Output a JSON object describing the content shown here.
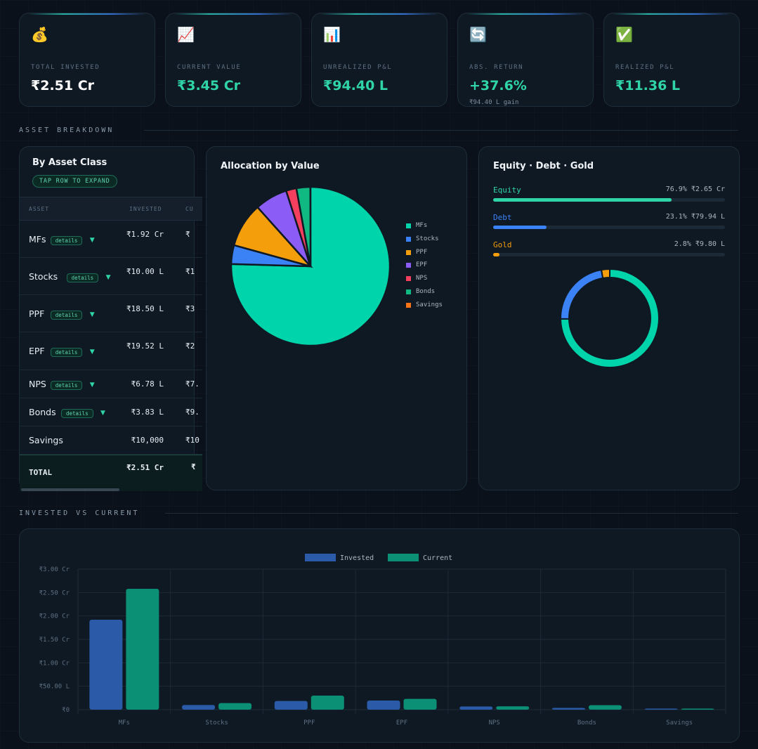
{
  "stats": [
    {
      "emoji": "💰",
      "label": "TOTAL INVESTED",
      "value": "₹2.51 Cr",
      "sub": ""
    },
    {
      "emoji": "📈",
      "label": "CURRENT VALUE",
      "value": "₹3.45 Cr",
      "sub": ""
    },
    {
      "emoji": "📊",
      "label": "UNREALIZED P&L",
      "value": "₹94.40 L",
      "sub": ""
    },
    {
      "emoji": "🔄",
      "label": "ABS. RETURN",
      "value": "+37.6%",
      "sub": "₹94.40 L gain"
    },
    {
      "emoji": "✅",
      "label": "REALIZED P&L",
      "value": "₹11.36 L",
      "sub": ""
    }
  ],
  "sections": {
    "asset_breakdown": "ASSET BREAKDOWN",
    "invested_vs_current": "INVESTED VS CURRENT"
  },
  "asset_table": {
    "title": "By Asset Class",
    "badge": "TAP ROW TO EXPAND",
    "headers": [
      "ASSET",
      "INVESTED",
      "CU"
    ],
    "details_label": "details",
    "caret": "▼",
    "rows": [
      {
        "name": "MFs",
        "invested": "₹1.92 Cr",
        "current": "₹",
        "details": true
      },
      {
        "name": "Stocks",
        "invested": "₹10.00 L",
        "current": "₹1",
        "details": true
      },
      {
        "name": "PPF",
        "invested": "₹18.50 L",
        "current": "₹3",
        "details": true
      },
      {
        "name": "EPF",
        "invested": "₹19.52 L",
        "current": "₹2",
        "details": true
      },
      {
        "name": "NPS",
        "invested": "₹6.78 L",
        "current": "₹7.",
        "details": true
      },
      {
        "name": "Bonds",
        "invested": "₹3.83 L",
        "current": "₹9.",
        "details": true
      },
      {
        "name": "Savings",
        "invested": "₹10,000",
        "current": "₹10",
        "details": false
      }
    ],
    "total": {
      "name": "TOTAL",
      "invested": "₹2.51 Cr",
      "current": "₹"
    }
  },
  "allocation": {
    "title": "Allocation by Value",
    "legend": [
      {
        "name": "MFs",
        "color": "#00d4aa"
      },
      {
        "name": "Stocks",
        "color": "#3b82f6"
      },
      {
        "name": "PPF",
        "color": "#f59e0b"
      },
      {
        "name": "EPF",
        "color": "#8b5cf6"
      },
      {
        "name": "NPS",
        "color": "#f43f5e"
      },
      {
        "name": "Bonds",
        "color": "#10b981"
      },
      {
        "name": "Savings",
        "color": "#f97316"
      }
    ]
  },
  "edg": {
    "title": "Equity · Debt · Gold",
    "items": [
      {
        "name": "Equity",
        "value": "76.9% ₹2.65 Cr",
        "percent": 76.9,
        "color": "#2fd5a6"
      },
      {
        "name": "Debt",
        "value": "23.1% ₹79.94 L",
        "percent": 23.1,
        "color": "#3b82f6"
      },
      {
        "name": "Gold",
        "value": "2.8% ₹9.80 L",
        "percent": 2.8,
        "color": "#f59e0b"
      }
    ]
  },
  "chart_data": [
    {
      "type": "pie",
      "title": "Allocation by Value",
      "categories": [
        "MFs",
        "Stocks",
        "PPF",
        "EPF",
        "NPS",
        "Bonds",
        "Savings"
      ],
      "values": [
        74.8,
        3.8,
        9.0,
        6.6,
        2.1,
        2.8,
        0.03
      ],
      "colors": [
        "#00d4aa",
        "#3b82f6",
        "#f59e0b",
        "#8b5cf6",
        "#f43f5e",
        "#10b981",
        "#f97316"
      ],
      "legend": "right"
    },
    {
      "type": "pie",
      "title": "Equity · Debt · Gold",
      "categories": [
        "Equity",
        "Debt",
        "Gold"
      ],
      "values": [
        76.9,
        23.1,
        2.8
      ],
      "colors": [
        "#00d4aa",
        "#3b82f6",
        "#f59e0b"
      ]
    },
    {
      "type": "bar",
      "categories": [
        "MFs",
        "Stocks",
        "PPF",
        "EPF",
        "NPS",
        "Bonds",
        "Savings"
      ],
      "series": [
        {
          "name": "Invested",
          "values": [
            1.92,
            0.1,
            0.185,
            0.195,
            0.068,
            0.038,
            0.001
          ],
          "color": "#2b5aa8"
        },
        {
          "name": "Current",
          "values": [
            2.58,
            0.14,
            0.3,
            0.23,
            0.072,
            0.095,
            0.001
          ],
          "color": "#0b8f75"
        }
      ],
      "ylim": [
        0,
        3.0
      ],
      "yticks": [
        0,
        0.5,
        1.0,
        1.5,
        2.0,
        2.5,
        3.0
      ],
      "ytick_labels": [
        "₹0",
        "₹50.00 L",
        "₹1.00 Cr",
        "₹1.50 Cr",
        "₹2.00 Cr",
        "₹2.50 Cr",
        "₹3.00 Cr"
      ],
      "legend": "top"
    }
  ]
}
